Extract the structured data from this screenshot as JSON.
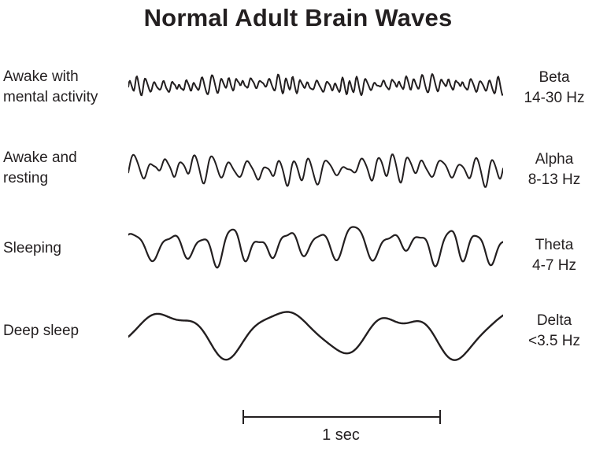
{
  "title": "Normal Adult Brain Waves",
  "colors": {
    "ink": "#231f20",
    "background": "#ffffff"
  },
  "rows": [
    {
      "state_lines": [
        "Awake with",
        "mental activity"
      ],
      "band": "Beta",
      "freq_range": "14-30 Hz",
      "wave": {
        "name": "beta-wave",
        "cycles": 46,
        "amp": 6.5,
        "fm": 1.2,
        "am": 0.45,
        "env": 5.3,
        "h2": 0.2,
        "sub": 0.45,
        "ratio": 0.63,
        "wander": 0.3,
        "wanderCycles": 2.2,
        "seed": 7,
        "stroke": 2
      }
    },
    {
      "state_lines": [
        "Awake and",
        "resting"
      ],
      "band": "Alpha",
      "freq_range": "8-13 Hz",
      "wave": {
        "name": "alpha-wave",
        "cycles": 23,
        "amp": 11,
        "fm": 1.0,
        "am": 0.4,
        "env": 4.1,
        "h2": 0.15,
        "sub": 0.4,
        "ratio": 0.58,
        "wander": 0.25,
        "wanderCycles": 1.7,
        "seed": 13,
        "stroke": 2
      }
    },
    {
      "state_lines": [
        "Sleeping"
      ],
      "band": "Theta",
      "freq_range": "4-7 Hz",
      "wave": {
        "name": "theta-wave",
        "cycles": 12,
        "amp": 15.5,
        "fm": 0.9,
        "am": 0.35,
        "env": 3.2,
        "h2": 0.25,
        "sub": 0.35,
        "ratio": 0.55,
        "wander": 0.2,
        "wanderCycles": 1.3,
        "seed": 21,
        "stroke": 2.2
      }
    },
    {
      "state_lines": [
        "Deep sleep"
      ],
      "band": "Delta",
      "freq_range": "<3.5 Hz",
      "wave": {
        "name": "delta-wave",
        "cycles": 3.1,
        "amp": 25,
        "fm": 0.4,
        "am": 0.15,
        "env": 1.5,
        "h2": 0.22,
        "sub": 0.15,
        "ratio": 2.7,
        "wander": 0.08,
        "wanderCycles": 0.8,
        "seed": 5,
        "stroke": 2.4
      }
    }
  ],
  "scale_bar": {
    "label": "1 sec"
  }
}
